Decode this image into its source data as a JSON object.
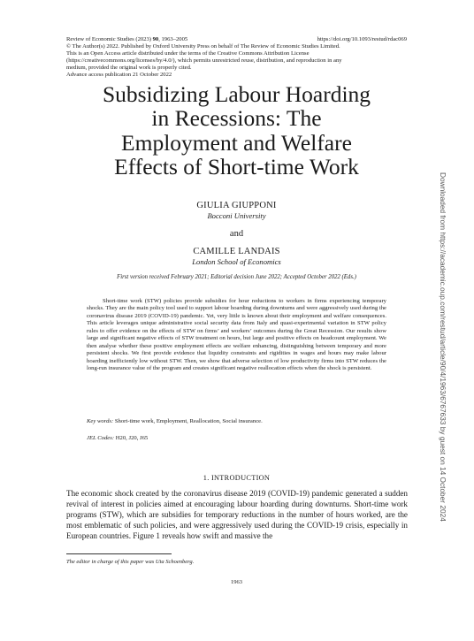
{
  "header": {
    "journal_prefix": "Review of Economic Studies (2023) ",
    "volume": "90",
    "pages": ", 1963–2005",
    "doi": "https://doi.org/10.1093/restud/rdac069",
    "license_lines": [
      "© The Author(s) 2022. Published by Oxford University Press on behalf of The Review of Economic Studies Limited.",
      "This is an Open Access article distributed under the terms of the Creative Commons Attribution License",
      "(https://creativecommons.org/licenses/by/4.0/), which permits unrestricted reuse, distribution, and reproduction in any",
      "medium, provided the original work is properly cited.",
      "Advance access publication 21 October 2022"
    ]
  },
  "title_lines": [
    "Subsidizing Labour Hoarding",
    "in Recessions: The",
    "Employment and Welfare",
    "Effects of Short-time Work"
  ],
  "authors": [
    {
      "name": "GIULIA GIUPPONI",
      "affiliation": "Bocconi University"
    },
    {
      "name": "CAMILLE LANDAIS",
      "affiliation": "London School of Economics"
    }
  ],
  "authors_conjunction": "and",
  "dates": "First version received February 2021; Editorial decision June 2022; Accepted October 2022 (Eds.)",
  "abstract": "Short-time work (STW) policies provide subsidies for hour reductions to workers in firms experiencing temporary shocks. They are the main policy tool used to support labour hoarding during downturns and were aggressively used during the coronavirus disease 2019 (COVID-19) pandemic. Yet, very little is known about their employment and welfare consequences. This article leverages unique administrative social security data from Italy and quasi-experimental variation in STW policy rules to offer evidence on the effects of STW on firms’ and workers’ outcomes during the Great Recession. Our results show large and significant negative effects of STW treatment on hours, but large and positive effects on headcount employment. We then analyse whether these positive employment effects are welfare enhancing, distinguishing between temporary and more persistent shocks. We first provide evidence that liquidity constraints and rigidities in wages and hours may make labour hoarding inefficiently low without STW. Then, we show that adverse selection of low productivity firms into STW reduces the long-run insurance value of the program and creates significant negative reallocation effects when the shock is persistent.",
  "keywords_label": "Key words:",
  "keywords": " Short-time work, Employment, Reallocation, Social insurance.",
  "jel_label": "JEL Codes:",
  "jel": " H20, J20, J65",
  "section_heading": "1.  INTRODUCTION",
  "intro_text": "The economic shock created by the coronavirus disease 2019 (COVID-19) pandemic generated a sudden revival of interest in policies aimed at encouraging labour hoarding during downturns. Short-time work programs (STW), which are subsidies for temporary reductions in the number of hours worked, are the most emblematic of such policies, and were aggressively used during the COVID-19 crisis, especially in European countries. Figure 1 reveals how swift and massive the",
  "footnote": "The editor in charge of this paper was Uta Schoenberg.",
  "page_number": "1963",
  "side_note": "Downloaded from https://academic.oup.com/restud/article/90/4/1963/6767633 by guest on 14 October 2024"
}
